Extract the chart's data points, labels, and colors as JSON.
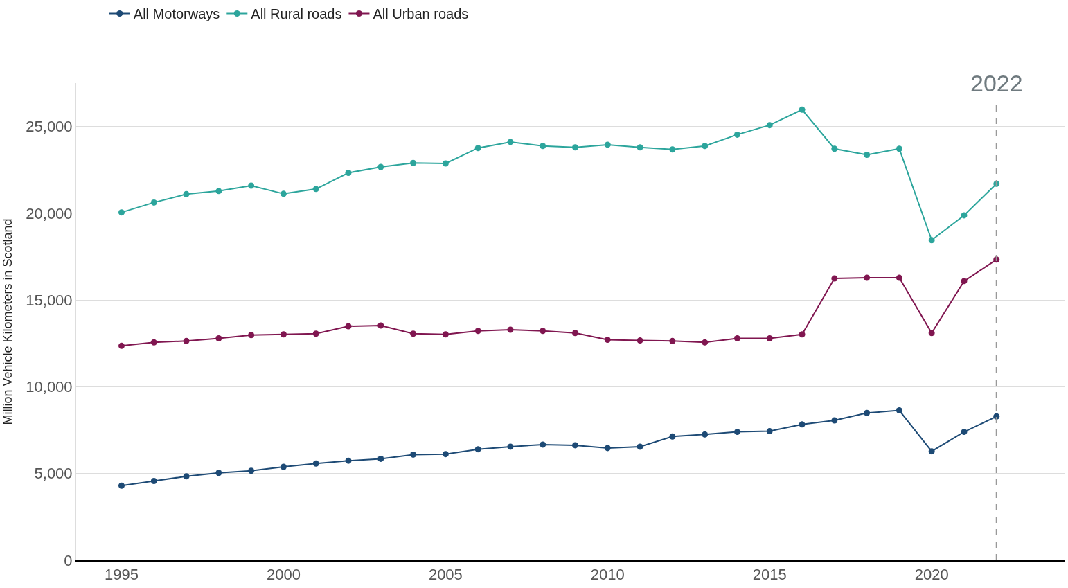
{
  "chart_data": {
    "type": "line",
    "ylabel": "Million Vehicle Kilometers in Scotland",
    "x": [
      1995,
      1996,
      1997,
      1998,
      1999,
      2000,
      2001,
      2002,
      2003,
      2004,
      2005,
      2006,
      2007,
      2008,
      2009,
      2010,
      2011,
      2012,
      2013,
      2014,
      2015,
      2016,
      2017,
      2018,
      2019,
      2020,
      2021,
      2022
    ],
    "series": [
      {
        "name": "All Motorways",
        "color": "#1d4a75",
        "values": [
          4300,
          4570,
          4840,
          5040,
          5160,
          5390,
          5580,
          5740,
          5850,
          6090,
          6120,
          6400,
          6550,
          6670,
          6630,
          6470,
          6550,
          7130,
          7250,
          7400,
          7440,
          7830,
          8060,
          8490,
          8640,
          6280,
          7400,
          8290
        ]
      },
      {
        "name": "All Rural roads",
        "color": "#2ca59c",
        "values": [
          20050,
          20620,
          21100,
          21280,
          21590,
          21120,
          21400,
          22330,
          22670,
          22900,
          22870,
          23760,
          24110,
          23880,
          23800,
          23950,
          23800,
          23680,
          23880,
          24530,
          25080,
          25970,
          23720,
          23370,
          23720,
          18450,
          19880,
          21700
        ]
      },
      {
        "name": "All Urban roads",
        "color": "#801650",
        "values": [
          12360,
          12560,
          12640,
          12790,
          12980,
          13020,
          13060,
          13490,
          13530,
          13060,
          13020,
          13220,
          13290,
          13220,
          13100,
          12710,
          12670,
          12640,
          12560,
          12790,
          12790,
          13020,
          16240,
          16280,
          16280,
          13100,
          16090,
          17330
        ]
      }
    ],
    "xlim": [
      1993.6,
      2024.1
    ],
    "xticks": [
      1995,
      2000,
      2005,
      2010,
      2015,
      2020
    ],
    "ylim": [
      0,
      27500
    ],
    "yticks": [
      {
        "value": 0,
        "label": "0"
      },
      {
        "value": 5000,
        "label": "5,000"
      },
      {
        "value": 10000,
        "label": "10,000"
      },
      {
        "value": 15000,
        "label": "15,000"
      },
      {
        "value": 20000,
        "label": "20,000"
      },
      {
        "value": 25000,
        "label": "25,000"
      }
    ],
    "ref_lines": [
      {
        "axis": "x",
        "value": 2022,
        "label": "2022",
        "color": "#999999",
        "line_style": "dashed"
      }
    ],
    "grid": "y",
    "legend": "top left",
    "marker": "circle",
    "line_style": "solid"
  }
}
